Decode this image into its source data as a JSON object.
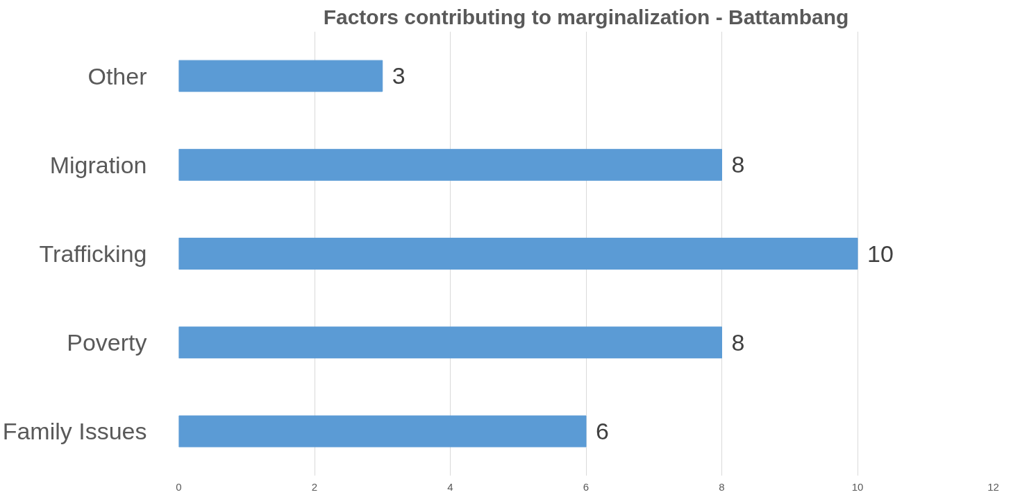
{
  "chart_data": {
    "type": "bar",
    "orientation": "horizontal",
    "title": "Factors contributing to marginalization - Battambang",
    "categories": [
      "Other",
      "Migration",
      "Trafficking",
      "Poverty",
      "Family Issues"
    ],
    "values": [
      3,
      8,
      10,
      8,
      6
    ],
    "color": "#5b9bd5",
    "xlim": [
      0,
      12
    ],
    "xticks": [
      0,
      2,
      4,
      6,
      8,
      10,
      12
    ],
    "grid": "x",
    "data_labels": true
  }
}
